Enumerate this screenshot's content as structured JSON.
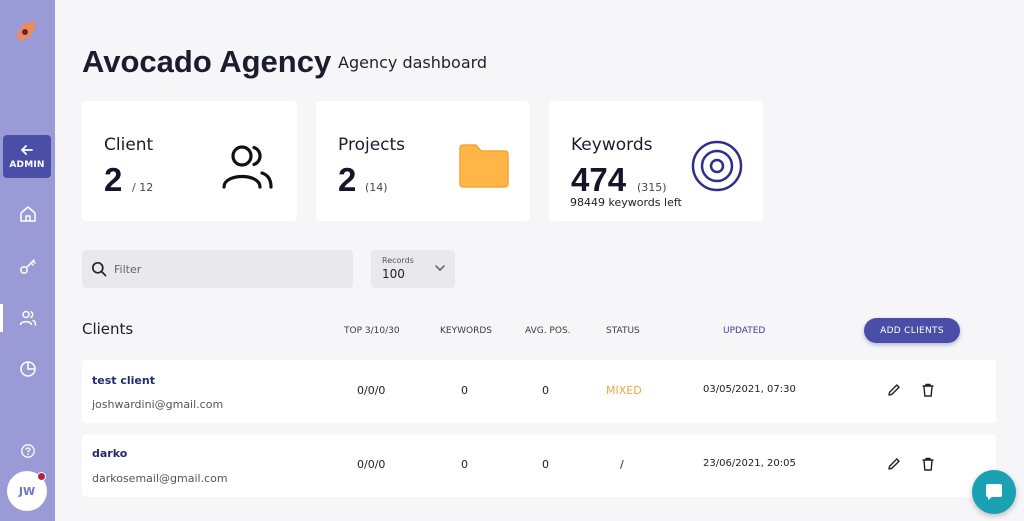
{
  "sidebar": {
    "admin_label": "ADMIN",
    "avatar_initials": "JW",
    "nav": [
      "home-icon",
      "key-icon",
      "users-icon",
      "pie-chart-icon",
      "help-icon"
    ]
  },
  "header": {
    "title": "Avocado Agency",
    "subtitle": "Agency dashboard"
  },
  "stats": {
    "client": {
      "label": "Client",
      "value": "2",
      "sub": "/ 12"
    },
    "projects": {
      "label": "Projects",
      "value": "2",
      "sub": "(14)"
    },
    "keywords": {
      "label": "Keywords",
      "value": "474",
      "sub": "(315)",
      "note": "98449 keywords left"
    }
  },
  "filters": {
    "filter_placeholder": "Filter",
    "records_label": "Records",
    "records_value": "100"
  },
  "table": {
    "title": "Clients",
    "headers": {
      "top": "TOP 3/10/30",
      "keywords": "KEYWORDS",
      "avg_pos": "AVG. POS.",
      "status": "STATUS",
      "updated": "UPDATED"
    },
    "add_button": "ADD CLIENTS",
    "rows": [
      {
        "name": "test client",
        "email": "joshwardini@gmail.com",
        "top": "0/0/0",
        "keywords": "0",
        "avg_pos": "0",
        "status": "MIXED",
        "updated": "03/05/2021, 07:30"
      },
      {
        "name": "darko",
        "email": "darkosemail@gmail.com",
        "top": "0/0/0",
        "keywords": "0",
        "avg_pos": "0",
        "status": "/",
        "updated": "23/06/2021, 20:05"
      }
    ]
  },
  "colors": {
    "sidebar": "#9a9ad6",
    "accent": "#4b4ea7",
    "folder": "#ffb547",
    "status_mixed": "#f5a53a",
    "chat": "#1aa1b3"
  }
}
